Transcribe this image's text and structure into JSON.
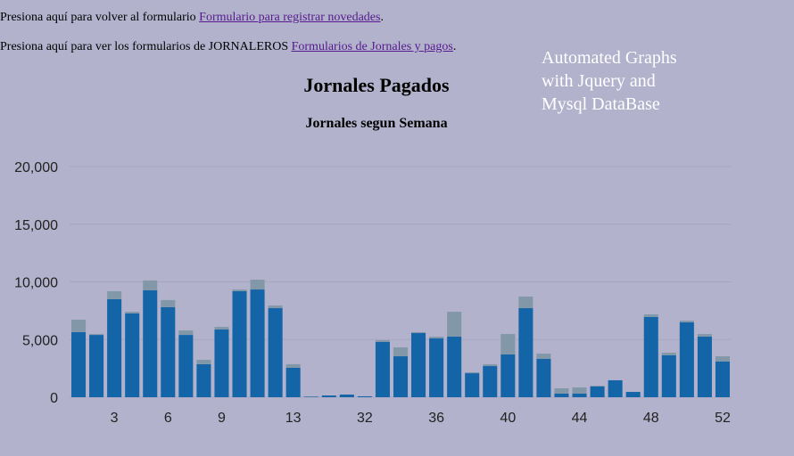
{
  "links": [
    {
      "text": "Presiona aquí para volver al formulario",
      "link": "Formulario para registrar novedades"
    },
    {
      "text": "Presiona aquí para ver los formularios de JORNALEROS",
      "link": "Formularios de Jornales y pagos"
    }
  ],
  "overlay": [
    "Automated Graphs",
    "with Jquery and",
    "Mysql DataBase"
  ],
  "chart_data": {
    "type": "stacked_bar",
    "title": "Jornales Pagados",
    "subtitle": "Jornales segun Semana",
    "categories": [
      null,
      null,
      "3",
      null,
      null,
      "6",
      null,
      null,
      "9",
      null,
      null,
      null,
      "13",
      null,
      null,
      null,
      "32",
      null,
      null,
      null,
      "36",
      null,
      null,
      null,
      "40",
      null,
      null,
      null,
      "44",
      null,
      null,
      null,
      "48",
      null,
      null,
      null,
      "52"
    ],
    "series": [
      {
        "color": "#1464a8",
        "values": [
          5640,
          5400,
          8500,
          7260,
          9270,
          7800,
          5400,
          2860,
          5870,
          9190,
          9340,
          7720,
          2550,
          50,
          150,
          230,
          80,
          4790,
          3550,
          5560,
          5100,
          5250,
          2080,
          2700,
          3710,
          7720,
          3320,
          310,
          310,
          930,
          1470,
          460,
          6950,
          3630,
          6490,
          5250,
          3090
        ]
      },
      {
        "color": "#8298a8",
        "values": [
          1080,
          80,
          690,
          150,
          850,
          620,
          390,
          380,
          230,
          150,
          850,
          230,
          310,
          0,
          0,
          0,
          0,
          150,
          770,
          80,
          150,
          2160,
          80,
          160,
          1770,
          1010,
          460,
          460,
          540,
          70,
          0,
          0,
          230,
          230,
          150,
          230,
          460
        ]
      }
    ],
    "ylim": [
      0,
      20000
    ],
    "yticks": [
      0,
      {
        "value": 5000,
        "label": "5,000"
      },
      {
        "value": 10000,
        "label": "10,000"
      },
      {
        "value": 15000,
        "label": "15,000"
      },
      {
        "value": 20000,
        "label": "20,000"
      }
    ],
    "grid": true
  }
}
